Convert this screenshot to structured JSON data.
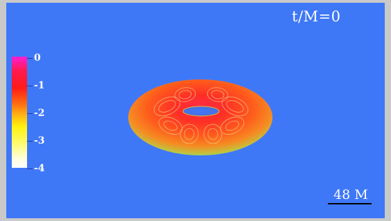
{
  "time_label": "t/M=0",
  "colorbar": {
    "ticks": [
      "0",
      "-1",
      "-2",
      "-3",
      "-4"
    ],
    "colors": [
      "#ff1fd4",
      "#ff1b17",
      "#ffb014",
      "#fff20e",
      "#ffffff"
    ]
  },
  "scale": {
    "label": "48 M"
  },
  "colors": {
    "background": "#3f78f7",
    "frame": "#c9c9c9",
    "torus_inner": "#ff2a3a",
    "torus_outer": "#b9c93d"
  }
}
